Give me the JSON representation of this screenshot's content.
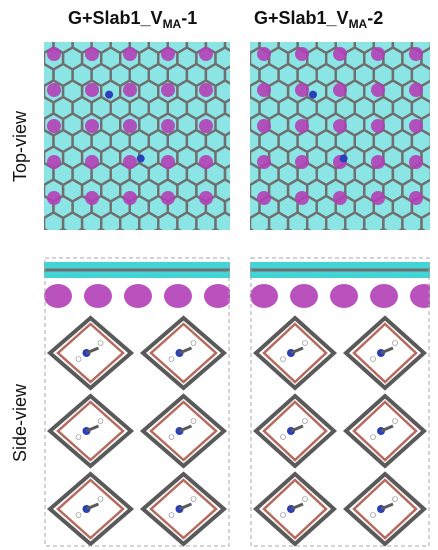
{
  "columns": [
    {
      "title_prefix": "G+Slab1_V",
      "title_sub": "MA",
      "title_suffix": "-1"
    },
    {
      "title_prefix": "G+Slab1_V",
      "title_sub": "MA",
      "title_suffix": "-2"
    }
  ],
  "rows": {
    "top_label": "Top-view",
    "side_label": "Side-view"
  },
  "colors": {
    "graphene_gray": "#6f6f6f",
    "charge_cyan": "#2fd0d0",
    "charge_magenta": "#b23fb6",
    "pb_i_bond_brown": "#b56a5e",
    "pb_gray": "#5a5a5a",
    "nitrogen_blue": "#2b3fb8"
  }
}
